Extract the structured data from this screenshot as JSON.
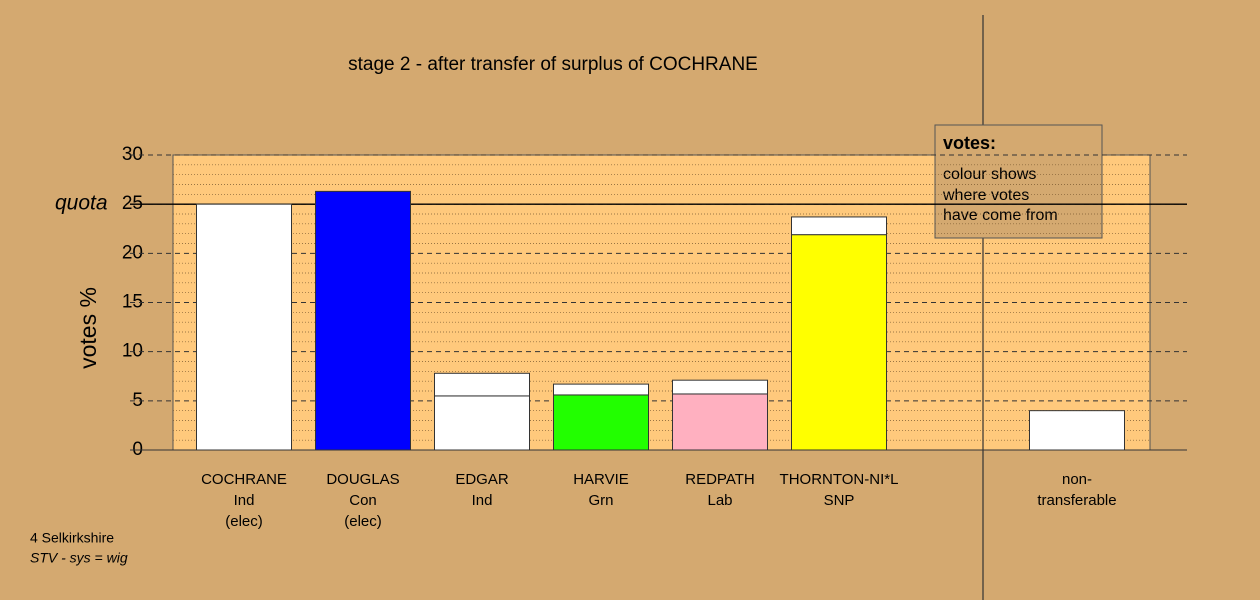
{
  "chart_data": {
    "type": "stacked-bar",
    "title": "stage 2 - after transfer of surplus of COCHRANE",
    "y_label": "votes %",
    "categories": [
      [
        "COCHRANE",
        "Ind",
        "(elec)"
      ],
      [
        "DOUGLAS",
        "Con",
        "(elec)"
      ],
      [
        "EDGAR",
        "Ind"
      ],
      [
        "HARVIE",
        "Grn"
      ],
      [
        "REDPATH",
        "Lab"
      ],
      [
        "THORNTON-NI*L",
        "SNP"
      ],
      null,
      [
        "non-",
        "transferable"
      ]
    ],
    "series": [
      {
        "colors": [
          "#ffffff",
          "#0000ff",
          "#ffffff",
          "#22ff00",
          "#ffb0c0",
          "#ffff00",
          null,
          null
        ],
        "values": [
          25,
          26.3,
          5.5,
          5.6,
          5.7,
          21.9,
          null,
          null
        ]
      },
      {
        "color": "#ffffff",
        "values": [
          null,
          null,
          2.3,
          1.1,
          1.4,
          1.8,
          null,
          4.0
        ]
      }
    ],
    "ylim": [
      0,
      30
    ],
    "yticks": [
      0,
      5,
      10,
      15,
      20,
      25,
      30
    ],
    "grid": true,
    "quota": {
      "value": 25,
      "label": "quota"
    },
    "legend": {
      "title": "votes:",
      "lines": [
        "colour shows",
        "where votes",
        "have come from"
      ]
    },
    "footnote": [
      "4 Selkirkshire",
      "STV - sys = wig"
    ]
  }
}
